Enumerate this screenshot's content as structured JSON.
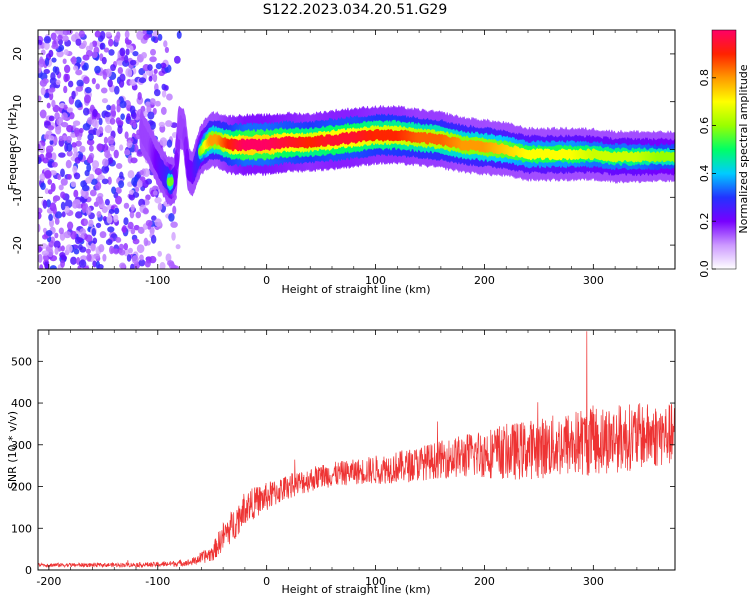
{
  "title": "S122.2023.034.20.51.G29",
  "chart_data": [
    {
      "type": "heatmap",
      "xlabel": "Height of straight line (km)",
      "ylabel": "Frequency (Hz)",
      "xlim": [
        -210,
        375
      ],
      "ylim": [
        -25,
        25
      ],
      "xticks": [
        -200,
        -100,
        0,
        100,
        200,
        300
      ],
      "yticks": [
        -20,
        -10,
        0,
        10,
        20
      ],
      "colorbar": {
        "label": "Normalized spectral amplitude",
        "range": [
          0.0,
          1.0
        ],
        "ticks": [
          0.0,
          0.2,
          0.4,
          0.6,
          0.8
        ],
        "colormap": [
          "#ffffff",
          "#cc99ff",
          "#7700ff",
          "#2233ff",
          "#00ccff",
          "#00ff66",
          "#99ff00",
          "#ffff00",
          "#ff9900",
          "#ff2200",
          "#ff0066"
        ]
      },
      "ridge": {
        "x": [
          -115,
          -108,
          -100,
          -92,
          -88,
          -84,
          -80,
          -76,
          -72,
          -68,
          -64,
          -60,
          -56,
          -52,
          -45,
          -35,
          -20,
          0,
          20,
          40,
          60,
          80,
          100,
          120,
          140,
          160,
          180,
          200,
          220,
          240,
          260,
          280,
          300,
          320,
          340,
          360,
          375
        ],
        "freq": [
          4,
          1,
          -3,
          -6,
          -7,
          -6,
          5,
          4,
          -4,
          -5,
          -2,
          0,
          1,
          2,
          2,
          1,
          1,
          1,
          1.5,
          1.5,
          2,
          2.5,
          3,
          3,
          2.5,
          2,
          1,
          0.5,
          0,
          -1,
          -1,
          -1,
          -1,
          -1.5,
          -1.5,
          -1.5,
          -1.5
        ],
        "amplitude": [
          0.3,
          0.3,
          0.4,
          0.5,
          0.6,
          0.4,
          0.3,
          0.3,
          0.4,
          0.4,
          0.5,
          0.6,
          0.7,
          0.8,
          0.8,
          0.9,
          1.0,
          1.0,
          0.95,
          0.9,
          0.95,
          0.95,
          0.9,
          0.9,
          0.85,
          0.85,
          0.8,
          0.8,
          0.75,
          0.7,
          0.7,
          0.7,
          0.65,
          0.65,
          0.65,
          0.6,
          0.6
        ]
      },
      "noise_region_x": [
        -210,
        -80
      ]
    },
    {
      "type": "line",
      "xlabel": "Height of straight line (km)",
      "ylabel": "SNR (10 * v/v)",
      "xlim": [
        -210,
        375
      ],
      "ylim": [
        0,
        575
      ],
      "xticks": [
        -200,
        -100,
        0,
        100,
        200,
        300
      ],
      "yticks": [
        0,
        100,
        200,
        300,
        400,
        500
      ],
      "color": "#ee3333",
      "envelope": {
        "x": [
          -210,
          -150,
          -100,
          -70,
          -50,
          -40,
          -30,
          -20,
          0,
          20,
          50,
          80,
          100,
          130,
          160,
          200,
          230,
          260,
          300,
          340,
          375
        ],
        "mean": [
          12,
          12,
          13,
          18,
          40,
          80,
          110,
          150,
          175,
          200,
          225,
          235,
          240,
          250,
          265,
          280,
          285,
          295,
          310,
          320,
          325
        ],
        "spread": [
          5,
          5,
          6,
          8,
          20,
          35,
          40,
          40,
          35,
          30,
          30,
          30,
          35,
          40,
          45,
          60,
          70,
          75,
          85,
          80,
          75
        ]
      },
      "peak": {
        "x": 294,
        "y": 572
      }
    }
  ]
}
